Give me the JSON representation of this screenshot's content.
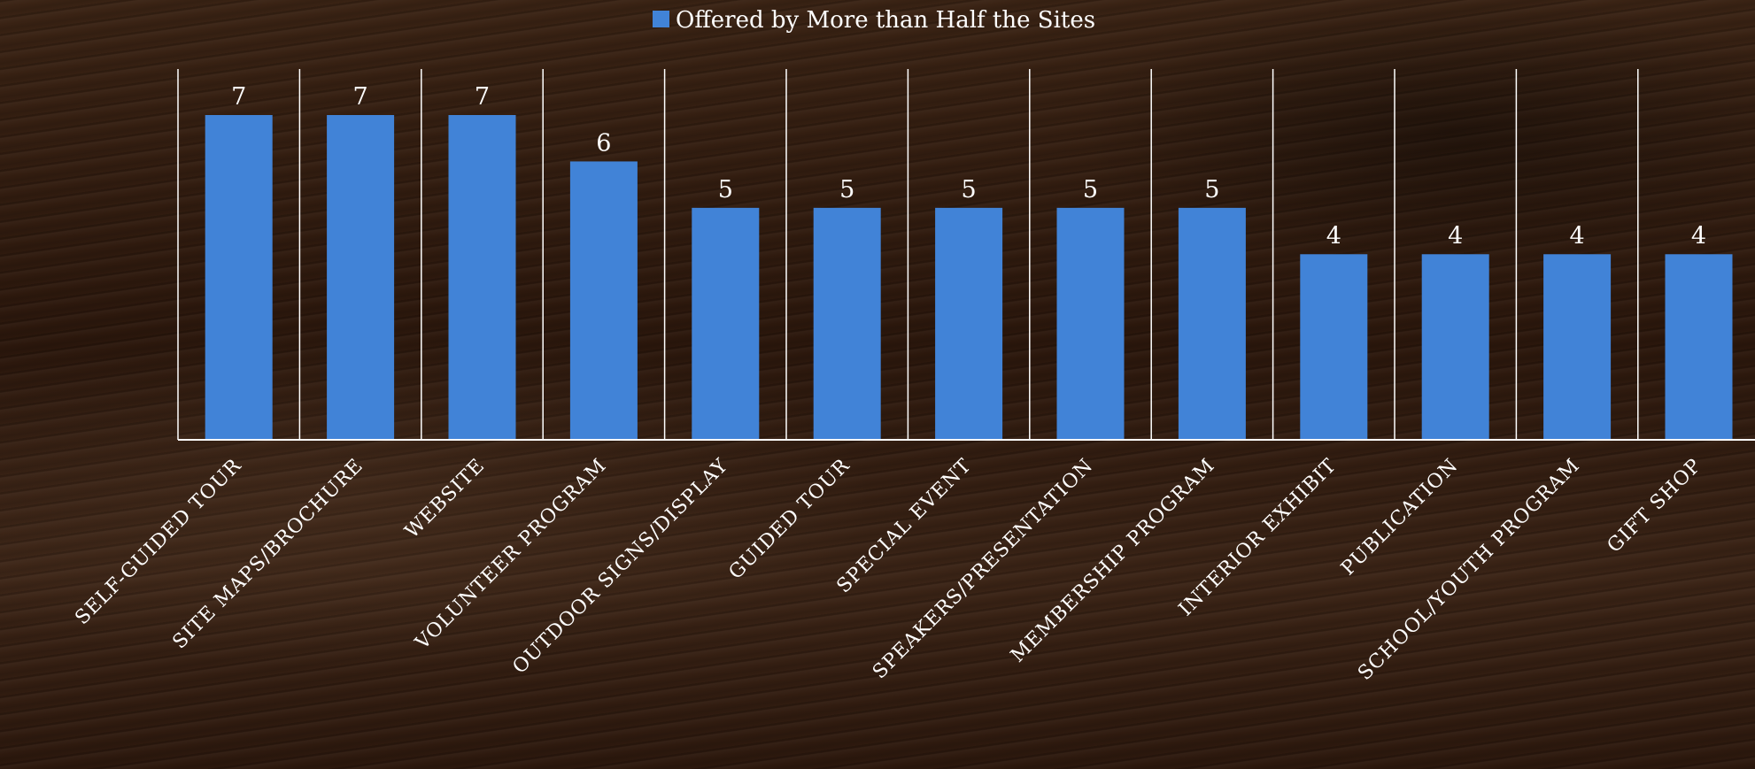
{
  "chart_data": {
    "type": "bar",
    "title": "",
    "xlabel": "",
    "ylabel": "",
    "categories": [
      "SELF-GUIDED TOUR",
      "SITE MAPS/BROCHURE",
      "WEBSITE",
      "VOLUNTEER PROGRAM",
      "OUTDOOR SIGNS/DISPLAY",
      "GUIDED TOUR",
      "SPECIAL EVENT",
      "SPEAKERS/PRESENTATION",
      "MEMBERSHIP PROGRAM",
      "INTERIOR EXHIBIT",
      "PUBLICATION",
      "SCHOOL/YOUTH PROGRAM",
      "GIFT SHOP"
    ],
    "series": [
      {
        "name": "Offered by More than Half the Sites",
        "values": [
          7,
          7,
          7,
          6,
          5,
          5,
          5,
          5,
          5,
          4,
          4,
          4,
          4
        ]
      }
    ],
    "ylim": [
      0,
      7
    ],
    "grid": "vertical category separators",
    "legend": "top-center",
    "data_labels": true,
    "colors": {
      "bar": "#4183d7",
      "text": "#ffffff",
      "axis": "#ffffff"
    }
  }
}
